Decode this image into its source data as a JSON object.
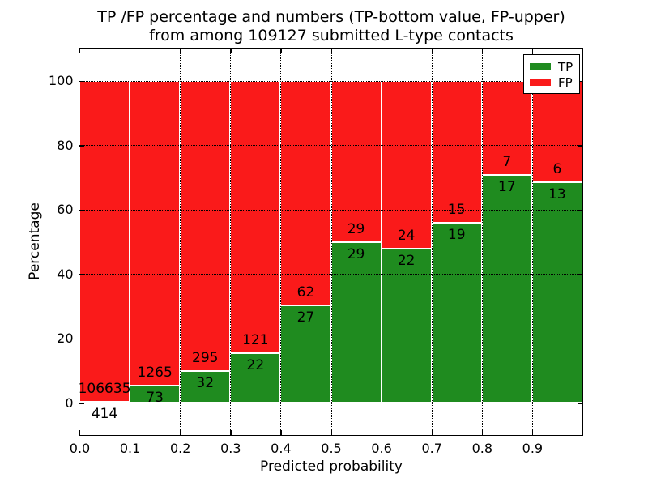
{
  "title": {
    "line1": "TP /FP percentage and numbers (TP-bottom value, FP-upper)",
    "line2": "from among 109127 submitted L-type contacts"
  },
  "axes": {
    "xlabel": "Predicted probability",
    "ylabel": "Percentage",
    "x_tick_labels": [
      "0.0",
      "0.1",
      "0.2",
      "0.3",
      "0.4",
      "0.5",
      "0.6",
      "0.7",
      "0.8",
      "0.9"
    ],
    "y_tick_labels": [
      "0",
      "20",
      "40",
      "60",
      "80",
      "100"
    ]
  },
  "legend": {
    "items": [
      {
        "label": "TP",
        "color": "#1f8b1f"
      },
      {
        "label": "FP",
        "color": "#fa1a1a"
      }
    ],
    "position": "upper right"
  },
  "colors": {
    "tp_green": "#1f8b1f",
    "fp_red": "#fa1a1a",
    "grid": "#000000",
    "background": "#ffffff",
    "text": "#000000"
  },
  "chart_data": {
    "type": "bar",
    "stacked": true,
    "normalized_height_percent": 100,
    "title": "TP /FP percentage and numbers (TP-bottom value, FP-upper) from among 109127 submitted L-type contacts",
    "xlabel": "Predicted probability",
    "ylabel": "Percentage",
    "total_submitted_contacts": 109127,
    "bin_width": 0.1,
    "bin_starts": [
      0.0,
      0.1,
      0.2,
      0.3,
      0.4,
      0.5,
      0.6,
      0.7,
      0.8,
      0.9
    ],
    "series": [
      {
        "name": "TP",
        "color": "#1f8b1f",
        "counts": [
          414,
          73,
          32,
          22,
          27,
          29,
          22,
          19,
          17,
          13
        ]
      },
      {
        "name": "FP",
        "color": "#fa1a1a",
        "counts": [
          106635,
          1265,
          295,
          121,
          62,
          29,
          24,
          15,
          7,
          6
        ]
      }
    ],
    "tp_percent_of_bar": [
      0.39,
      5.46,
      9.79,
      15.38,
      30.34,
      50.0,
      47.83,
      55.88,
      70.83,
      68.42
    ],
    "fp_percent_of_bar": [
      99.61,
      94.54,
      90.21,
      84.62,
      69.66,
      50.0,
      52.17,
      44.12,
      29.17,
      31.58
    ],
    "xlim": [
      0.0,
      1.0
    ],
    "ylim": [
      -10,
      110
    ],
    "yticks": [
      0,
      20,
      40,
      60,
      80,
      100
    ],
    "xticks": [
      0.0,
      0.1,
      0.2,
      0.3,
      0.4,
      0.5,
      0.6,
      0.7,
      0.8,
      0.9,
      1.0
    ],
    "grid": {
      "enabled": true,
      "style": "dotted",
      "color": "#000000"
    },
    "legend_position": "upper right",
    "bar_edge_color": "#ffffff",
    "label_note": "FP count printed above green/red boundary, TP count printed below it"
  }
}
